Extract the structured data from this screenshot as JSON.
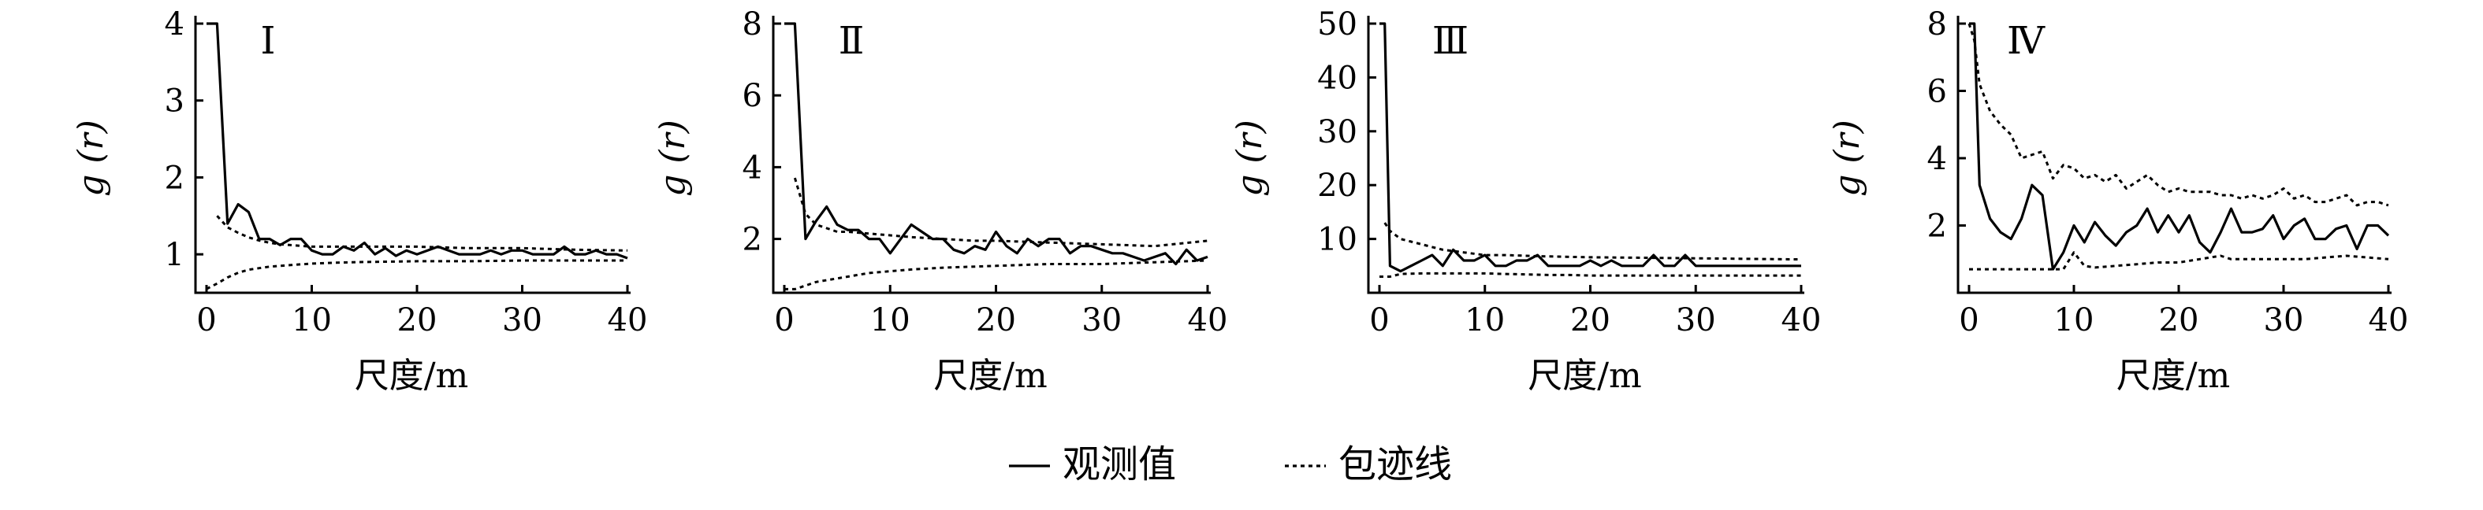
{
  "chart_data": [
    {
      "type": "line",
      "title": "Ⅰ",
      "xlabel": "尺度/m",
      "ylabel": "g (r)",
      "xlim": [
        0,
        40
      ],
      "ylim": [
        0.5,
        4
      ],
      "xticks": [
        0,
        10,
        20,
        30,
        40
      ],
      "yticks": [
        1,
        2,
        3,
        4
      ],
      "grid": false,
      "series": [
        {
          "name": "观测值",
          "style": "solid",
          "x": [
            0,
            1,
            2,
            3,
            4,
            5,
            6,
            7,
            8,
            9,
            10,
            11,
            12,
            13,
            14,
            15,
            16,
            17,
            18,
            19,
            20,
            21,
            22,
            23,
            24,
            25,
            26,
            27,
            28,
            29,
            30,
            31,
            32,
            33,
            34,
            35,
            36,
            37,
            38,
            39,
            40
          ],
          "values": [
            4.0,
            4.0,
            1.4,
            1.65,
            1.55,
            1.2,
            1.2,
            1.12,
            1.2,
            1.2,
            1.05,
            1.0,
            1.0,
            1.1,
            1.05,
            1.15,
            1.0,
            1.08,
            0.98,
            1.05,
            1.0,
            1.05,
            1.1,
            1.05,
            1.0,
            1.0,
            1.0,
            1.05,
            1.0,
            1.05,
            1.05,
            1.0,
            1.0,
            1.0,
            1.1,
            1.0,
            1.0,
            1.05,
            1.0,
            1.0,
            0.95
          ]
        },
        {
          "name": "包迹线",
          "style": "dotted",
          "x": [
            1,
            2,
            3,
            4,
            5,
            6,
            7,
            8,
            9,
            10,
            12,
            15,
            18,
            20,
            25,
            30,
            35,
            40
          ],
          "values": [
            1.5,
            1.35,
            1.28,
            1.22,
            1.18,
            1.15,
            1.13,
            1.12,
            1.11,
            1.1,
            1.1,
            1.1,
            1.1,
            1.1,
            1.08,
            1.08,
            1.06,
            1.05
          ]
        },
        {
          "style": "dotted",
          "x": [
            0,
            1,
            2,
            3,
            4,
            5,
            6,
            8,
            10,
            12,
            15,
            20,
            25,
            30,
            35,
            40
          ],
          "values": [
            0.55,
            0.62,
            0.7,
            0.76,
            0.8,
            0.82,
            0.84,
            0.86,
            0.88,
            0.89,
            0.9,
            0.91,
            0.91,
            0.92,
            0.92,
            0.92
          ]
        }
      ]
    },
    {
      "type": "line",
      "title": "Ⅱ",
      "xlabel": "尺度/m",
      "ylabel": "g (r)",
      "xlim": [
        0,
        40
      ],
      "ylim": [
        0.5,
        8
      ],
      "xticks": [
        0,
        10,
        20,
        30,
        40
      ],
      "yticks": [
        2,
        4,
        6,
        8
      ],
      "grid": false,
      "series": [
        {
          "name": "观测值",
          "style": "solid",
          "x": [
            0,
            1,
            2,
            3,
            4,
            5,
            6,
            7,
            8,
            9,
            10,
            11,
            12,
            13,
            14,
            15,
            16,
            17,
            18,
            19,
            20,
            21,
            22,
            23,
            24,
            25,
            26,
            27,
            28,
            29,
            30,
            31,
            32,
            33,
            34,
            35,
            36,
            37,
            38,
            39,
            40
          ],
          "values": [
            8.0,
            8.0,
            2.0,
            2.5,
            2.9,
            2.4,
            2.25,
            2.25,
            2.0,
            2.0,
            1.6,
            2.0,
            2.4,
            2.2,
            2.0,
            2.0,
            1.7,
            1.6,
            1.8,
            1.7,
            2.2,
            1.8,
            1.6,
            2.0,
            1.8,
            2.0,
            2.0,
            1.6,
            1.8,
            1.8,
            1.7,
            1.6,
            1.6,
            1.5,
            1.4,
            1.5,
            1.6,
            1.3,
            1.7,
            1.4,
            1.5
          ]
        },
        {
          "name": "包迹线",
          "style": "dotted",
          "x": [
            1,
            2,
            3,
            4,
            5,
            6,
            8,
            10,
            12,
            15,
            18,
            20,
            25,
            30,
            35,
            40
          ],
          "values": [
            3.7,
            2.7,
            2.4,
            2.3,
            2.2,
            2.2,
            2.15,
            2.1,
            2.05,
            2.0,
            1.95,
            1.95,
            1.9,
            1.85,
            1.8,
            1.95
          ]
        },
        {
          "style": "dotted",
          "x": [
            0,
            1,
            2,
            3,
            4,
            5,
            6,
            8,
            10,
            12,
            15,
            20,
            25,
            30,
            35,
            40
          ],
          "values": [
            0.6,
            0.6,
            0.7,
            0.8,
            0.85,
            0.9,
            0.95,
            1.05,
            1.1,
            1.15,
            1.2,
            1.25,
            1.3,
            1.3,
            1.35,
            1.4
          ]
        }
      ]
    },
    {
      "type": "line",
      "title": "Ⅲ",
      "xlabel": "尺度/m",
      "ylabel": "g (r)",
      "xlim": [
        0,
        40
      ],
      "ylim": [
        0,
        50
      ],
      "xticks": [
        0,
        10,
        20,
        30,
        40
      ],
      "yticks": [
        10,
        20,
        30,
        40,
        50
      ],
      "grid": false,
      "series": [
        {
          "name": "观测值",
          "style": "solid",
          "x": [
            0,
            0.5,
            1,
            2,
            3,
            4,
            5,
            6,
            7,
            8,
            9,
            10,
            11,
            12,
            13,
            14,
            15,
            16,
            17,
            18,
            19,
            20,
            21,
            22,
            23,
            24,
            25,
            26,
            27,
            28,
            29,
            30,
            31,
            32,
            33,
            34,
            35,
            36,
            37,
            38,
            39,
            40
          ],
          "values": [
            50,
            50,
            5,
            4,
            5,
            6,
            7,
            5,
            8,
            6,
            6,
            7,
            5,
            5,
            6,
            6,
            7,
            5,
            5,
            5,
            5,
            6,
            5,
            6,
            5,
            5,
            5,
            7,
            5,
            5,
            7,
            5,
            5,
            5,
            5,
            5,
            5,
            5,
            5,
            5,
            5,
            5
          ]
        },
        {
          "name": "包迹线",
          "style": "dotted",
          "x": [
            0.5,
            1,
            2,
            3,
            4,
            5,
            6,
            8,
            10,
            12,
            15,
            20,
            25,
            30,
            35,
            40
          ],
          "values": [
            13,
            11.5,
            10,
            9.5,
            9,
            8.5,
            8,
            7.5,
            7,
            7,
            6.8,
            6.6,
            6.5,
            6.4,
            6.3,
            6.2
          ]
        },
        {
          "style": "dotted",
          "x": [
            0,
            1,
            2,
            4,
            6,
            8,
            10,
            12,
            14,
            16,
            18,
            20,
            25,
            30,
            35,
            40
          ],
          "values": [
            3,
            3,
            3.5,
            3.6,
            3.6,
            3.6,
            3.6,
            3.5,
            3.4,
            3.3,
            3.3,
            3.2,
            3.2,
            3.2,
            3.2,
            3.2
          ]
        }
      ]
    },
    {
      "type": "line",
      "title": "Ⅳ",
      "xlabel": "尺度/m",
      "ylabel": "g (r)",
      "xlim": [
        0,
        40
      ],
      "ylim": [
        0,
        8
      ],
      "xticks": [
        0,
        10,
        20,
        30,
        40
      ],
      "yticks": [
        2,
        4,
        6,
        8
      ],
      "grid": false,
      "series": [
        {
          "name": "观测值",
          "style": "solid",
          "x": [
            0,
            0.5,
            1,
            2,
            3,
            4,
            5,
            6,
            7,
            8,
            9,
            10,
            11,
            12,
            13,
            14,
            15,
            16,
            17,
            18,
            19,
            20,
            21,
            22,
            23,
            24,
            25,
            26,
            27,
            28,
            29,
            30,
            31,
            32,
            33,
            34,
            35,
            36,
            37,
            38,
            39,
            40
          ],
          "values": [
            8,
            8,
            3.2,
            2.2,
            1.8,
            1.6,
            2.2,
            3.2,
            2.9,
            0.7,
            1.2,
            2.0,
            1.5,
            2.1,
            1.7,
            1.4,
            1.8,
            2.0,
            2.5,
            1.8,
            2.3,
            1.8,
            2.3,
            1.5,
            1.2,
            1.8,
            2.5,
            1.8,
            1.8,
            1.9,
            2.3,
            1.6,
            2.0,
            2.2,
            1.6,
            1.6,
            1.9,
            2.0,
            1.3,
            2.0,
            2.0,
            1.7
          ]
        },
        {
          "name": "包迹线",
          "style": "dotted",
          "x": [
            0,
            0.5,
            1,
            2,
            3,
            4,
            5,
            6,
            7,
            8,
            9,
            10,
            11,
            12,
            13,
            14,
            15,
            16,
            17,
            18,
            19,
            20,
            21,
            22,
            23,
            24,
            25,
            26,
            27,
            28,
            29,
            30,
            31,
            32,
            33,
            34,
            35,
            36,
            37,
            38,
            39,
            40
          ],
          "values": [
            8,
            7.5,
            6.2,
            5.4,
            5.0,
            4.7,
            4.0,
            4.1,
            4.2,
            3.4,
            3.8,
            3.7,
            3.4,
            3.5,
            3.3,
            3.5,
            3.1,
            3.3,
            3.5,
            3.2,
            3.0,
            3.1,
            3.0,
            3.0,
            3.0,
            2.9,
            2.9,
            2.8,
            2.9,
            2.8,
            2.9,
            3.1,
            2.8,
            2.9,
            2.7,
            2.7,
            2.8,
            2.9,
            2.6,
            2.7,
            2.7,
            2.6
          ]
        },
        {
          "style": "dotted",
          "x": [
            0,
            1,
            2,
            4,
            6,
            8,
            9,
            10,
            11,
            12,
            14,
            16,
            18,
            20,
            22,
            24,
            25,
            26,
            28,
            30,
            32,
            34,
            36,
            38,
            40
          ],
          "values": [
            0.7,
            0.7,
            0.7,
            0.7,
            0.7,
            0.7,
            0.7,
            1.2,
            0.8,
            0.75,
            0.8,
            0.85,
            0.9,
            0.9,
            1.0,
            1.1,
            1.0,
            1.0,
            1.0,
            1.0,
            1.0,
            1.05,
            1.1,
            1.05,
            1.0
          ]
        }
      ]
    }
  ],
  "legend": {
    "placement": "bottom-center",
    "items": [
      {
        "label": "观测值",
        "style": "solid"
      },
      {
        "label": "包迹线",
        "style": "dotted"
      }
    ]
  }
}
